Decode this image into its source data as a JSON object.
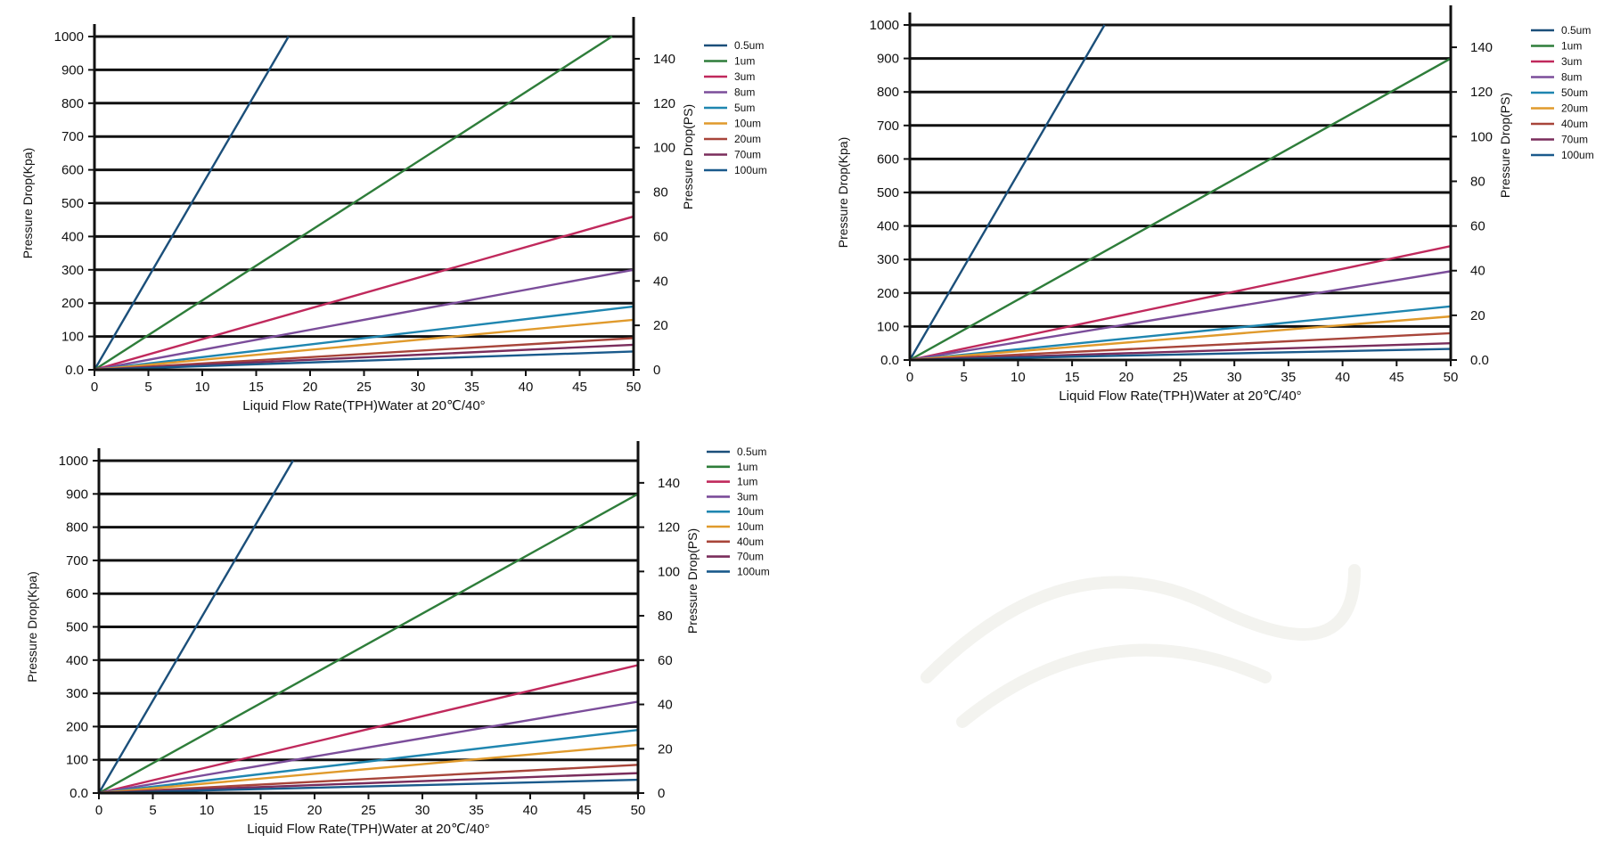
{
  "chart_data": [
    {
      "type": "line",
      "title": "",
      "xlabel": "Liquid Flow Rate(TPH)Water at 20℃/40°",
      "ylabel": "Pressure Drop(Kpa)",
      "y2label": "Pressure Drop(PS)",
      "xlim": [
        0,
        50
      ],
      "ylim": [
        0,
        1000
      ],
      "y2lim": [
        0,
        150
      ],
      "xticks": [
        "0",
        "5",
        "10",
        "15",
        "20",
        "25",
        "30",
        "35",
        "40",
        "45",
        "50"
      ],
      "yticks": [
        "0.0",
        "100",
        "200",
        "300",
        "400",
        "500",
        "600",
        "700",
        "800",
        "900",
        "1000"
      ],
      "y2ticks": [
        "0",
        "20",
        "40",
        "60",
        "80",
        "100",
        "120",
        "140"
      ],
      "grid": true,
      "legend_position": "right",
      "series": [
        {
          "name": "0.5um",
          "color": "#1b4f7a",
          "x": [
            0,
            18
          ],
          "y": [
            0,
            1000
          ]
        },
        {
          "name": "1um",
          "color": "#2e7d3a",
          "x": [
            0,
            48
          ],
          "y": [
            0,
            1000
          ]
        },
        {
          "name": "3um",
          "color": "#c0295c",
          "x": [
            0,
            50
          ],
          "y": [
            0,
            460
          ]
        },
        {
          "name": "8um",
          "color": "#7b4d9a",
          "x": [
            0,
            50
          ],
          "y": [
            0,
            300
          ]
        },
        {
          "name": "5um",
          "color": "#1f86b0",
          "x": [
            0,
            50
          ],
          "y": [
            0,
            190
          ]
        },
        {
          "name": "10um",
          "color": "#e09a2c",
          "x": [
            0,
            50
          ],
          "y": [
            0,
            150
          ]
        },
        {
          "name": "20um",
          "color": "#a8453a",
          "x": [
            0,
            50
          ],
          "y": [
            0,
            95
          ]
        },
        {
          "name": "70um",
          "color": "#7a2d5c",
          "x": [
            0,
            50
          ],
          "y": [
            0,
            75
          ]
        },
        {
          "name": "100um",
          "color": "#1a5a8c",
          "x": [
            0,
            50
          ],
          "y": [
            0,
            55
          ]
        }
      ]
    },
    {
      "type": "line",
      "title": "",
      "xlabel": "Liquid Flow Rate(TPH)Water at 20℃/40°",
      "ylabel": "Pressure Drop(Kpa)",
      "y2label": "Pressure Drop(PS)",
      "xlim": [
        0,
        50
      ],
      "ylim": [
        0,
        1000
      ],
      "y2lim": [
        0,
        150
      ],
      "xticks": [
        "0",
        "5",
        "10",
        "15",
        "20",
        "25",
        "30",
        "35",
        "40",
        "45",
        "50"
      ],
      "yticks": [
        "0.0",
        "100",
        "200",
        "300",
        "400",
        "500",
        "600",
        "700",
        "800",
        "900",
        "1000"
      ],
      "y2ticks": [
        "0.0",
        "20",
        "40",
        "60",
        "80",
        "100",
        "120",
        "140"
      ],
      "grid": true,
      "legend_position": "right",
      "series": [
        {
          "name": "0.5um",
          "color": "#1b4f7a",
          "x": [
            0,
            18
          ],
          "y": [
            0,
            1000
          ]
        },
        {
          "name": "1um",
          "color": "#2e7d3a",
          "x": [
            0,
            50
          ],
          "y": [
            0,
            900
          ]
        },
        {
          "name": "3um",
          "color": "#c0295c",
          "x": [
            0,
            50
          ],
          "y": [
            0,
            340
          ]
        },
        {
          "name": "8um",
          "color": "#7b4d9a",
          "x": [
            0,
            50
          ],
          "y": [
            0,
            265
          ]
        },
        {
          "name": "50um",
          "color": "#1f86b0",
          "x": [
            0,
            50
          ],
          "y": [
            0,
            160
          ]
        },
        {
          "name": "20um",
          "color": "#e09a2c",
          "x": [
            0,
            50
          ],
          "y": [
            0,
            130
          ]
        },
        {
          "name": "40um",
          "color": "#a8453a",
          "x": [
            0,
            50
          ],
          "y": [
            0,
            80
          ]
        },
        {
          "name": "70um",
          "color": "#7a2d5c",
          "x": [
            0,
            50
          ],
          "y": [
            0,
            50
          ]
        },
        {
          "name": "100um",
          "color": "#1a5a8c",
          "x": [
            0,
            50
          ],
          "y": [
            0,
            33
          ]
        }
      ]
    },
    {
      "type": "line",
      "title": "",
      "xlabel": "Liquid Flow Rate(TPH)Water at 20℃/40°",
      "ylabel": "Pressure Drop(Kpa)",
      "y2label": "Pressure Drop(PS)",
      "xlim": [
        0,
        50
      ],
      "ylim": [
        0,
        1000
      ],
      "y2lim": [
        0,
        150
      ],
      "xticks": [
        "0",
        "5",
        "10",
        "15",
        "20",
        "25",
        "30",
        "35",
        "40",
        "45",
        "50"
      ],
      "yticks": [
        "0.0",
        "100",
        "200",
        "300",
        "400",
        "500",
        "600",
        "700",
        "800",
        "900",
        "1000"
      ],
      "y2ticks": [
        "0",
        "20",
        "40",
        "60",
        "80",
        "100",
        "120",
        "140"
      ],
      "grid": true,
      "legend_position": "right",
      "series": [
        {
          "name": "0.5um",
          "color": "#1b4f7a",
          "x": [
            0,
            18
          ],
          "y": [
            0,
            1000
          ]
        },
        {
          "name": "1um",
          "color": "#2e7d3a",
          "x": [
            0,
            50
          ],
          "y": [
            0,
            900
          ]
        },
        {
          "name": "1um",
          "color": "#c0295c",
          "x": [
            0,
            50
          ],
          "y": [
            0,
            385
          ]
        },
        {
          "name": "3um",
          "color": "#7b4d9a",
          "x": [
            0,
            50
          ],
          "y": [
            0,
            275
          ]
        },
        {
          "name": "10um",
          "color": "#1f86b0",
          "x": [
            0,
            50
          ],
          "y": [
            0,
            190
          ]
        },
        {
          "name": "10um",
          "color": "#e09a2c",
          "x": [
            0,
            50
          ],
          "y": [
            0,
            145
          ]
        },
        {
          "name": "40um",
          "color": "#a8453a",
          "x": [
            0,
            50
          ],
          "y": [
            0,
            85
          ]
        },
        {
          "name": "70um",
          "color": "#7a2d5c",
          "x": [
            0,
            50
          ],
          "y": [
            0,
            60
          ]
        },
        {
          "name": "100um",
          "color": "#1a5a8c",
          "x": [
            0,
            50
          ],
          "y": [
            0,
            40
          ]
        }
      ]
    }
  ]
}
